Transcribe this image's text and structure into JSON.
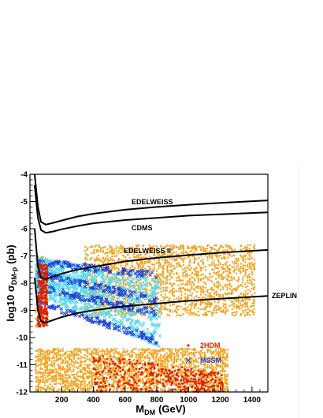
{
  "chart_data": {
    "type": "scatter",
    "title": "",
    "xlabel": "M",
    "xlabel_sub": "DM",
    "xlabel_unit": "(GeV)",
    "ylabel": "log10 σ",
    "ylabel_sub": "DM-p",
    "ylabel_unit": "(pb)",
    "xlim": [
      0,
      1500
    ],
    "ylim": [
      -12,
      -4
    ],
    "xticks": [
      200,
      400,
      600,
      800,
      1000,
      1200,
      1400
    ],
    "yticks": [
      -12,
      -11,
      -10,
      -9,
      -8,
      -7,
      -6,
      -5,
      -4
    ],
    "grid": false,
    "limit_curves": [
      {
        "name": "EDELWEISS",
        "x": [
          30,
          50,
          70,
          100,
          150,
          200,
          300,
          400,
          600,
          800,
          1000,
          1200,
          1500
        ],
        "y": [
          -4.0,
          -5.2,
          -5.75,
          -5.85,
          -5.78,
          -5.7,
          -5.55,
          -5.45,
          -5.3,
          -5.2,
          -5.12,
          -5.05,
          -4.96
        ]
      },
      {
        "name": "CDMS",
        "x": [
          30,
          50,
          70,
          100,
          150,
          200,
          300,
          400,
          600,
          800,
          1000,
          1200,
          1500
        ],
        "y": [
          -4.4,
          -5.6,
          -6.05,
          -6.15,
          -6.1,
          -6.02,
          -5.9,
          -5.8,
          -5.68,
          -5.6,
          -5.52,
          -5.47,
          -5.4
        ]
      },
      {
        "name": "EDELWEISS II",
        "x": [
          30,
          50,
          70,
          100,
          150,
          200,
          300,
          400,
          600,
          800,
          1000,
          1200,
          1500
        ],
        "y": [
          -6.0,
          -7.4,
          -7.8,
          -7.85,
          -7.75,
          -7.65,
          -7.5,
          -7.4,
          -7.2,
          -7.07,
          -6.97,
          -6.88,
          -6.78
        ]
      },
      {
        "name": "ZEPLIN",
        "x": [
          30,
          50,
          70,
          100,
          150,
          200,
          300,
          400,
          600,
          800,
          1000,
          1200,
          1500
        ],
        "y": [
          -7.8,
          -9.0,
          -9.4,
          -9.45,
          -9.35,
          -9.25,
          -9.1,
          -9.0,
          -8.85,
          -8.75,
          -8.65,
          -8.57,
          -8.47
        ]
      }
    ],
    "series": [
      {
        "name": "2HDM",
        "marker": "dot",
        "color": "#e02000"
      },
      {
        "name": "MSSM",
        "marker": "cross",
        "color": "#1a3fd8"
      }
    ],
    "background_points": {
      "color": "#f5a21a",
      "bands": [
        {
          "x0": 350,
          "x1": 1420,
          "ylo": -9.2,
          "yhi": -6.6
        },
        {
          "x0": 40,
          "x1": 1250,
          "ylo": -12,
          "yhi": -10.4
        },
        {
          "x0": 40,
          "x1": 110,
          "ylo": -9.6,
          "yhi": -7.0
        }
      ]
    },
    "scan_points": {
      "color": "#5ad8f0"
    },
    "legend_position": "lower-right",
    "colors": {
      "curve": "#000000",
      "axis": "#000000"
    }
  }
}
